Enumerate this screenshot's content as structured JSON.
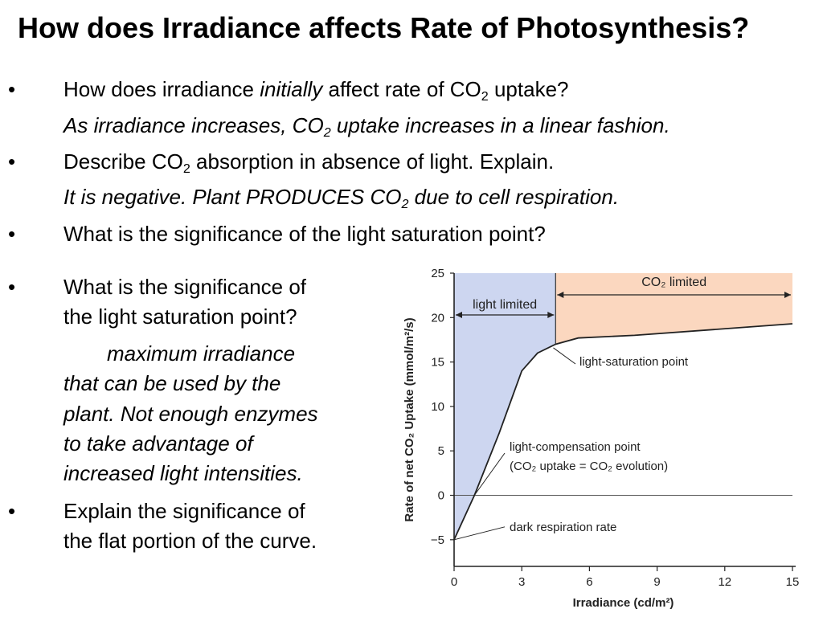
{
  "title": "How does Irradiance affects Rate of Photosynthesis?",
  "bullet_glyph": "•",
  "q1": {
    "a": "How does irradiance ",
    "b": "initially",
    "c": " affect rate of CO",
    "d": "2",
    "e": " uptake?"
  },
  "a1": {
    "a": "As irradiance increases, CO",
    "b": "2",
    "c": " uptake increases in a linear fashion."
  },
  "q2": {
    "a": "Describe CO",
    "b": "2",
    "c": " absorption in absence of light. Explain."
  },
  "a2": {
    "a": "It is negative. Plant PRODUCES CO",
    "b": "2",
    "c": " due to cell respiration."
  },
  "q3": "What is the significance of the light saturation point?",
  "q4": [
    "What is the significance of",
    "the light saturation point?"
  ],
  "a4": [
    "maximum irradiance",
    "that can be used by the",
    "plant. Not enough enzymes",
    "to take advantage of",
    "increased light intensities."
  ],
  "q5": [
    "Explain the significance of",
    "the flat portion of the curve."
  ],
  "chart_data": {
    "type": "line",
    "xlabel": "Irradiance (cd/m²)",
    "ylabel": "Rate of net CO₂ Uptake (mmol/m²/s)",
    "xlim": [
      0,
      15
    ],
    "ylim": [
      -8,
      25
    ],
    "xticks": [
      0,
      3,
      6,
      9,
      12,
      15
    ],
    "yticks": [
      25,
      20,
      15,
      10,
      5,
      0,
      -5
    ],
    "tick_labels_x": [
      "0",
      "3",
      "6",
      "9",
      "12",
      "15"
    ],
    "tick_labels_y": [
      "25",
      "20",
      "15",
      "10",
      "5",
      "0",
      "−5"
    ],
    "series": [
      {
        "x": [
          0,
          0.9,
          2,
          3,
          3.7,
          4.5,
          5.5,
          8,
          15
        ],
        "y": [
          -5,
          0,
          7,
          14,
          16,
          17,
          17.7,
          18,
          19.3
        ]
      }
    ],
    "regions": [
      {
        "label": "light limited",
        "x_range": [
          0,
          4.5
        ],
        "color": "#cdd6f0"
      },
      {
        "label": "CO₂ limited",
        "x_range": [
          4.5,
          15
        ],
        "color": "#fbd7bf"
      }
    ],
    "annotations": [
      "light-saturation point",
      "light-compensation point",
      "(CO₂ uptake = CO₂ evolution)",
      "dark respiration rate"
    ]
  }
}
